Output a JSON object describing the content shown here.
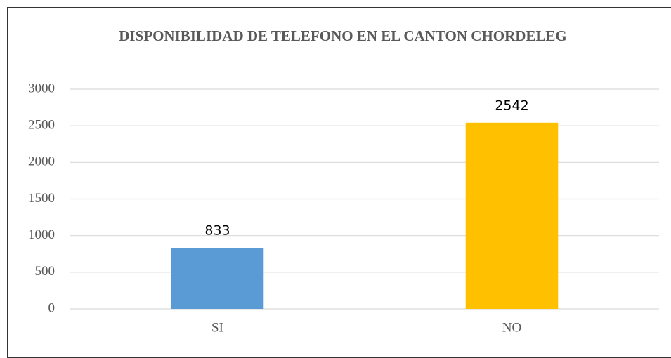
{
  "chart_data": {
    "type": "bar",
    "title": "DISPONIBILIDAD DE TELEFONO EN EL CANTON CHORDELEG",
    "categories": [
      "SI",
      "NO"
    ],
    "values": [
      833,
      2542
    ],
    "colors": [
      "#5b9bd5",
      "#ffc000"
    ],
    "ylim": [
      0,
      3000
    ],
    "yticks": [
      0,
      500,
      1000,
      1500,
      2000,
      2500,
      3000
    ],
    "grid": true,
    "data_labels": true
  }
}
